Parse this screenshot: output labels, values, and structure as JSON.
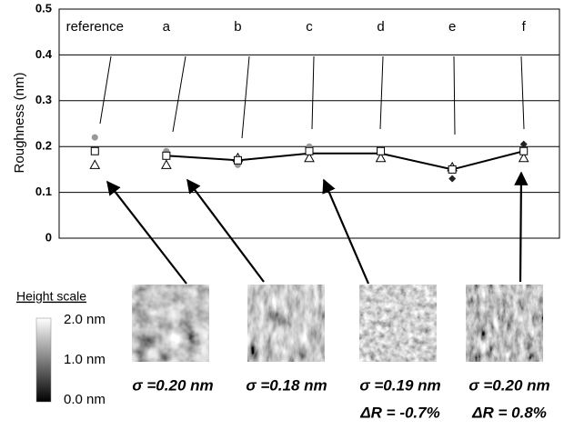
{
  "chart_data": {
    "type": "line",
    "y_label": "Roughness  (nm)",
    "categories": [
      "reference",
      "a",
      "b",
      "c",
      "d",
      "e",
      "f"
    ],
    "ylim": [
      0,
      0.5
    ],
    "yticks": [
      0,
      0.1,
      0.2,
      0.3,
      0.4,
      0.5
    ],
    "grid": true,
    "series": [
      {
        "marker": "circle",
        "color": "#999999",
        "line": false,
        "values": [
          0.22,
          0.19,
          0.16,
          0.2,
          0.19,
          null,
          null
        ]
      },
      {
        "marker": "diamond",
        "color": "#222222",
        "line": false,
        "values": [
          null,
          null,
          null,
          null,
          null,
          0.13,
          0.205
        ]
      },
      {
        "marker": "triangle",
        "color": "#ffffff",
        "line": false,
        "values": [
          0.16,
          0.16,
          0.175,
          0.175,
          0.175,
          0.155,
          0.175
        ]
      },
      {
        "marker": "none",
        "color": "#000000",
        "line": true,
        "values": [
          null,
          0.18,
          0.17,
          0.185,
          0.185,
          0.15,
          0.19
        ]
      },
      {
        "marker": "square",
        "color": "#ffffff",
        "line": false,
        "values": [
          0.19,
          0.18,
          0.17,
          0.19,
          0.19,
          0.15,
          0.19
        ]
      }
    ]
  },
  "height_scale": {
    "title": "Height scale",
    "labels": [
      "2.0 nm",
      "1.0 nm",
      "0.0 nm"
    ]
  },
  "images": [
    {
      "sigma": "σ =0.20 nm"
    },
    {
      "sigma": "σ =0.18 nm"
    },
    {
      "sigma": "σ =0.19 nm",
      "delta": "ΔR = -0.7%"
    },
    {
      "sigma": "σ =0.20 nm",
      "delta": "ΔR = 0.8%"
    }
  ]
}
